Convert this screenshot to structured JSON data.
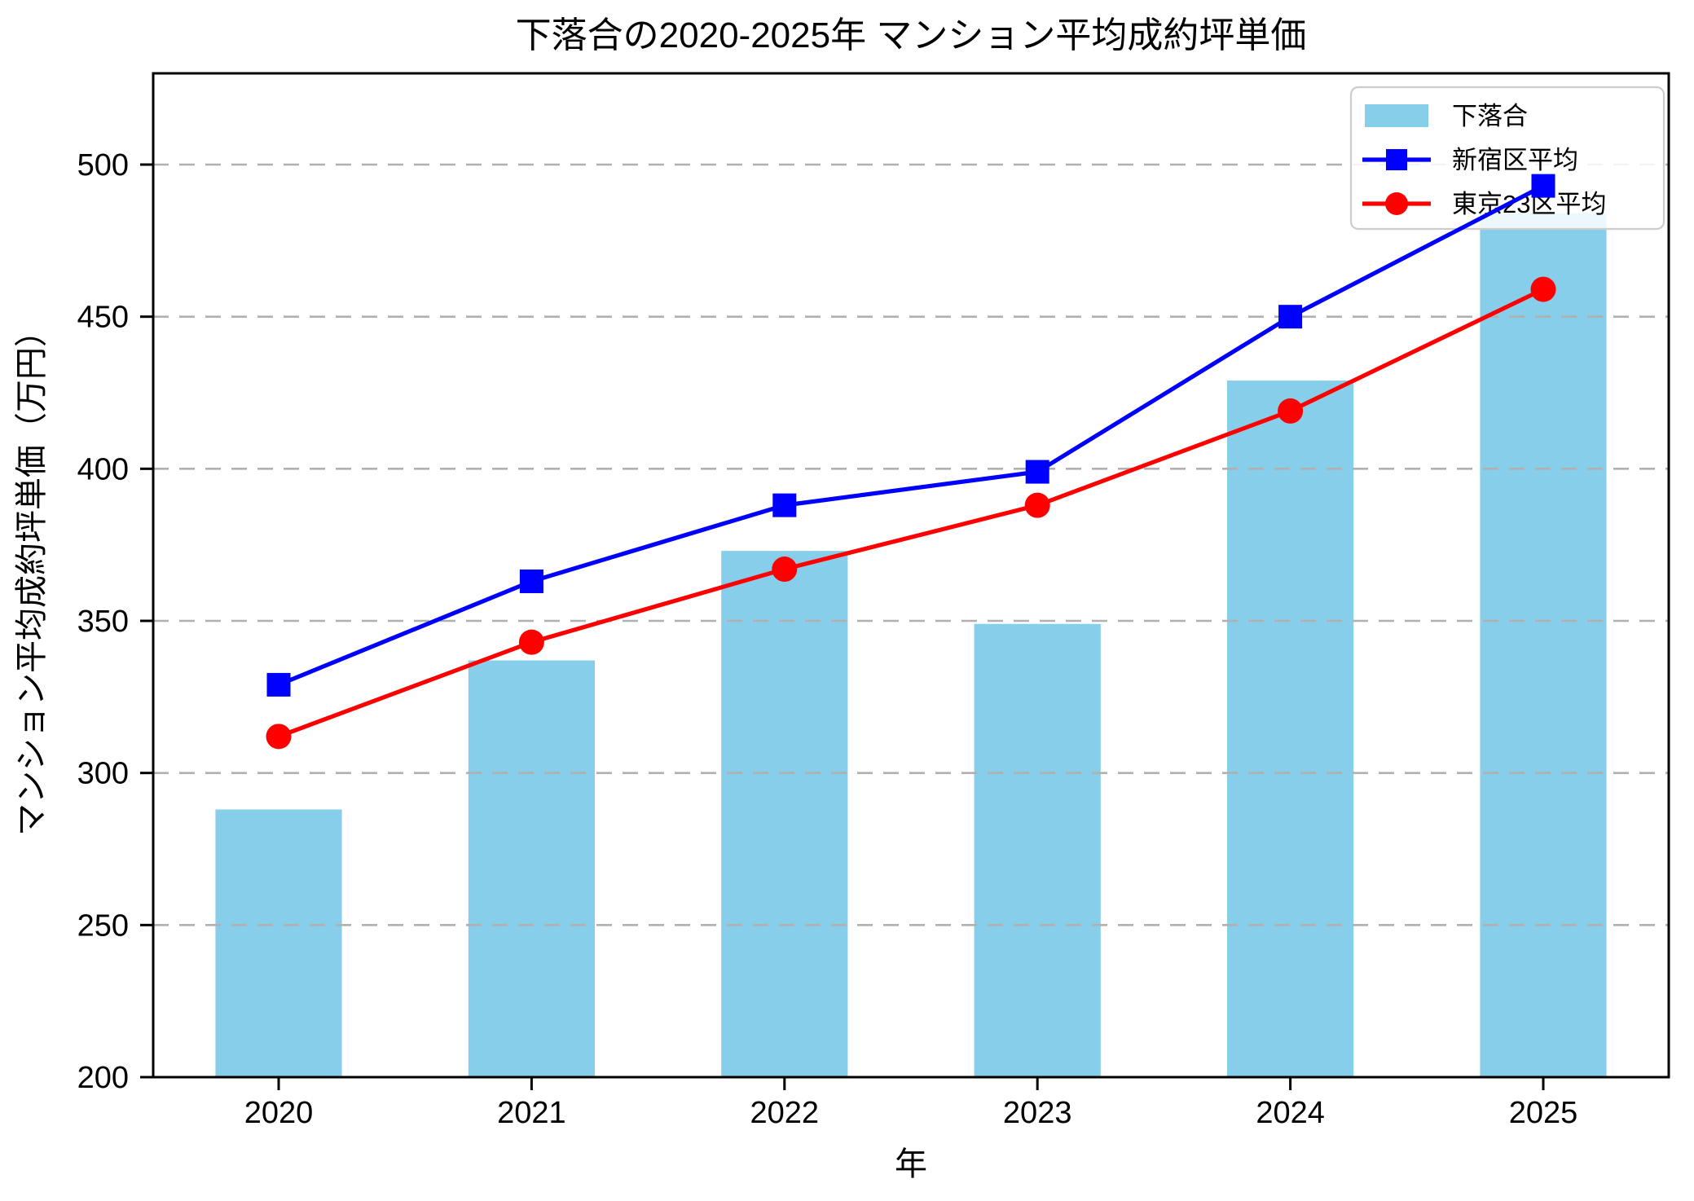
{
  "chart_data": {
    "type": "bar",
    "title": "下落合の2020-2025年 マンション平均成約坪単価",
    "xlabel": "年",
    "ylabel": "マンション平均成約坪単価（万円）",
    "categories": [
      "2020",
      "2021",
      "2022",
      "2023",
      "2024",
      "2025"
    ],
    "series": [
      {
        "name": "下落合",
        "type": "bar",
        "marker": "none",
        "color": "#87CEEB",
        "values": [
          288,
          337,
          373,
          349,
          429,
          484
        ]
      },
      {
        "name": "新宿区平均",
        "type": "line",
        "marker": "square",
        "color": "#0000FF",
        "values": [
          329,
          363,
          388,
          399,
          450,
          493
        ]
      },
      {
        "name": "東京23区平均",
        "type": "line",
        "marker": "circle",
        "color": "#FF0000",
        "values": [
          312,
          343,
          367,
          388,
          419,
          459
        ]
      }
    ],
    "yticks": [
      200,
      250,
      300,
      350,
      400,
      450,
      500
    ],
    "ylim": [
      200,
      530
    ],
    "grid": "horizontal-dashed",
    "grid_color": "#b0b0b0",
    "axis_color": "#000000",
    "legend_position": "upper-right",
    "unit": "万円"
  }
}
